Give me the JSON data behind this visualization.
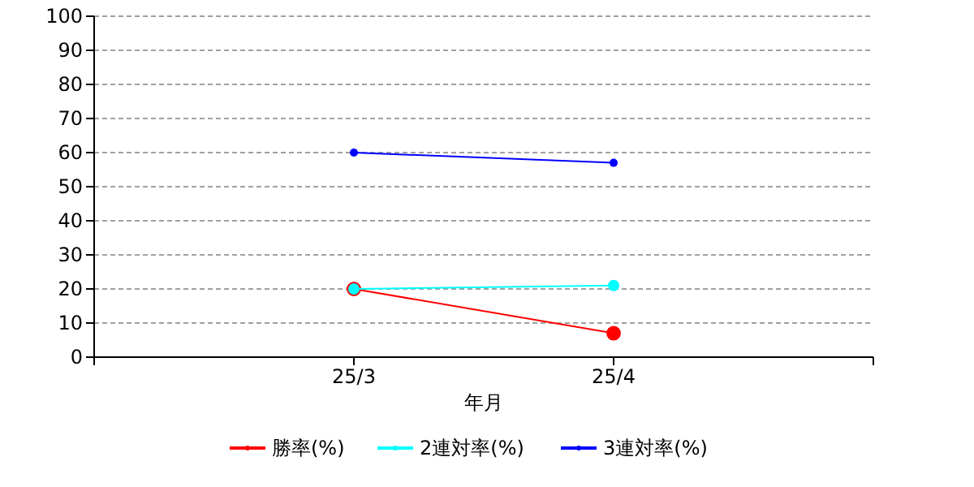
{
  "chart_data": {
    "type": "line",
    "xlabel": "年月",
    "categories": [
      "25/3",
      "25/4"
    ],
    "series": [
      {
        "name": "勝率(%)",
        "color": "#ff0000",
        "values": [
          20,
          7
        ]
      },
      {
        "name": "2連対率(%)",
        "color": "#00ffff",
        "values": [
          20,
          21
        ]
      },
      {
        "name": "3連対率(%)",
        "color": "#0000ff",
        "values": [
          60,
          57
        ]
      }
    ],
    "ylim": [
      0,
      100
    ],
    "yticks": [
      0,
      10,
      20,
      30,
      40,
      50,
      60,
      70,
      80,
      90,
      100
    ],
    "grid": "y",
    "legend": "bottom",
    "marker": "circle"
  }
}
